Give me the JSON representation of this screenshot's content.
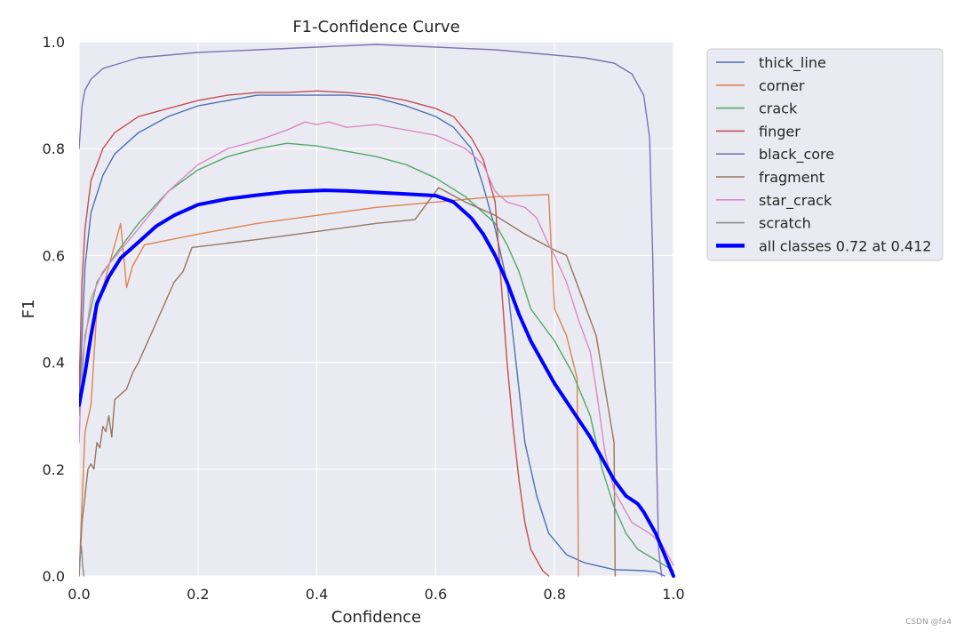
{
  "chart_data": {
    "type": "line",
    "title": "F1-Confidence Curve",
    "xlabel": "Confidence",
    "ylabel": "F1",
    "xlim": [
      0.0,
      1.0
    ],
    "ylim": [
      0.0,
      1.0
    ],
    "xticks": [
      "0.0",
      "0.2",
      "0.4",
      "0.6",
      "0.8",
      "1.0"
    ],
    "yticks": [
      "0.0",
      "0.2",
      "0.4",
      "0.6",
      "0.8",
      "1.0"
    ],
    "grid": true,
    "background": "#eaeaf2",
    "legend_position": "outside-right",
    "series": [
      {
        "name": "thick_line",
        "color": "#4c72b0",
        "width": 1.4,
        "points": [
          [
            0,
            0.32
          ],
          [
            0.01,
            0.58
          ],
          [
            0.02,
            0.68
          ],
          [
            0.04,
            0.75
          ],
          [
            0.06,
            0.79
          ],
          [
            0.1,
            0.83
          ],
          [
            0.15,
            0.86
          ],
          [
            0.2,
            0.88
          ],
          [
            0.25,
            0.89
          ],
          [
            0.3,
            0.9
          ],
          [
            0.35,
            0.9
          ],
          [
            0.4,
            0.9
          ],
          [
            0.45,
            0.9
          ],
          [
            0.5,
            0.895
          ],
          [
            0.55,
            0.88
          ],
          [
            0.6,
            0.86
          ],
          [
            0.63,
            0.84
          ],
          [
            0.66,
            0.8
          ],
          [
            0.68,
            0.73
          ],
          [
            0.7,
            0.65
          ],
          [
            0.72,
            0.55
          ],
          [
            0.73,
            0.45
          ],
          [
            0.74,
            0.35
          ],
          [
            0.75,
            0.25
          ],
          [
            0.77,
            0.15
          ],
          [
            0.79,
            0.08
          ],
          [
            0.82,
            0.04
          ],
          [
            0.85,
            0.025
          ],
          [
            0.9,
            0.012
          ],
          [
            0.95,
            0.01
          ],
          [
            0.97,
            0.008
          ],
          [
            0.985,
            0.0
          ]
        ]
      },
      {
        "name": "corner",
        "color": "#dd8452",
        "width": 1.4,
        "points": [
          [
            0,
            0.0
          ],
          [
            0.01,
            0.27
          ],
          [
            0.02,
            0.32
          ],
          [
            0.03,
            0.5
          ],
          [
            0.05,
            0.58
          ],
          [
            0.07,
            0.66
          ],
          [
            0.075,
            0.6
          ],
          [
            0.08,
            0.54
          ],
          [
            0.09,
            0.58
          ],
          [
            0.1,
            0.6
          ],
          [
            0.11,
            0.62
          ],
          [
            0.2,
            0.64
          ],
          [
            0.3,
            0.66
          ],
          [
            0.4,
            0.675
          ],
          [
            0.5,
            0.69
          ],
          [
            0.6,
            0.7
          ],
          [
            0.7,
            0.71
          ],
          [
            0.79,
            0.714
          ],
          [
            0.795,
            0.6
          ],
          [
            0.8,
            0.5
          ],
          [
            0.82,
            0.45
          ],
          [
            0.838,
            0.37
          ],
          [
            0.84,
            0.0
          ]
        ]
      },
      {
        "name": "crack",
        "color": "#55a868",
        "width": 1.4,
        "points": [
          [
            0,
            0.3
          ],
          [
            0.01,
            0.45
          ],
          [
            0.03,
            0.55
          ],
          [
            0.06,
            0.6
          ],
          [
            0.1,
            0.66
          ],
          [
            0.15,
            0.72
          ],
          [
            0.2,
            0.76
          ],
          [
            0.25,
            0.785
          ],
          [
            0.3,
            0.8
          ],
          [
            0.35,
            0.81
          ],
          [
            0.4,
            0.805
          ],
          [
            0.45,
            0.795
          ],
          [
            0.5,
            0.785
          ],
          [
            0.55,
            0.77
          ],
          [
            0.6,
            0.745
          ],
          [
            0.65,
            0.71
          ],
          [
            0.7,
            0.66
          ],
          [
            0.72,
            0.62
          ],
          [
            0.74,
            0.57
          ],
          [
            0.76,
            0.5
          ],
          [
            0.8,
            0.44
          ],
          [
            0.83,
            0.38
          ],
          [
            0.86,
            0.3
          ],
          [
            0.88,
            0.2
          ],
          [
            0.9,
            0.13
          ],
          [
            0.92,
            0.08
          ],
          [
            0.94,
            0.05
          ],
          [
            0.97,
            0.03
          ],
          [
            1.0,
            0.01
          ]
        ]
      },
      {
        "name": "finger",
        "color": "#c44e52",
        "width": 1.4,
        "points": [
          [
            0,
            0.35
          ],
          [
            0.005,
            0.55
          ],
          [
            0.01,
            0.65
          ],
          [
            0.02,
            0.74
          ],
          [
            0.04,
            0.8
          ],
          [
            0.06,
            0.83
          ],
          [
            0.1,
            0.86
          ],
          [
            0.15,
            0.875
          ],
          [
            0.2,
            0.89
          ],
          [
            0.25,
            0.9
          ],
          [
            0.3,
            0.905
          ],
          [
            0.35,
            0.905
          ],
          [
            0.4,
            0.908
          ],
          [
            0.45,
            0.905
          ],
          [
            0.5,
            0.9
          ],
          [
            0.55,
            0.89
          ],
          [
            0.6,
            0.875
          ],
          [
            0.63,
            0.86
          ],
          [
            0.66,
            0.82
          ],
          [
            0.68,
            0.78
          ],
          [
            0.7,
            0.7
          ],
          [
            0.71,
            0.55
          ],
          [
            0.72,
            0.4
          ],
          [
            0.73,
            0.28
          ],
          [
            0.74,
            0.18
          ],
          [
            0.75,
            0.1
          ],
          [
            0.76,
            0.05
          ],
          [
            0.78,
            0.01
          ],
          [
            0.79,
            0.0
          ]
        ]
      },
      {
        "name": "black_core",
        "color": "#8172b3",
        "width": 1.4,
        "points": [
          [
            0,
            0.8
          ],
          [
            0.005,
            0.88
          ],
          [
            0.01,
            0.91
          ],
          [
            0.02,
            0.93
          ],
          [
            0.04,
            0.95
          ],
          [
            0.07,
            0.96
          ],
          [
            0.1,
            0.97
          ],
          [
            0.2,
            0.98
          ],
          [
            0.3,
            0.985
          ],
          [
            0.4,
            0.99
          ],
          [
            0.5,
            0.995
          ],
          [
            0.6,
            0.99
          ],
          [
            0.7,
            0.985
          ],
          [
            0.8,
            0.975
          ],
          [
            0.85,
            0.97
          ],
          [
            0.9,
            0.96
          ],
          [
            0.93,
            0.94
          ],
          [
            0.95,
            0.9
          ],
          [
            0.96,
            0.82
          ],
          [
            0.965,
            0.6
          ],
          [
            0.97,
            0.3
          ],
          [
            0.975,
            0.05
          ],
          [
            0.98,
            0.0
          ]
        ]
      },
      {
        "name": "fragment",
        "color": "#937860",
        "width": 1.4,
        "points": [
          [
            0,
            0.0
          ],
          [
            0.005,
            0.1
          ],
          [
            0.01,
            0.15
          ],
          [
            0.015,
            0.2
          ],
          [
            0.02,
            0.21
          ],
          [
            0.025,
            0.2
          ],
          [
            0.03,
            0.25
          ],
          [
            0.035,
            0.24
          ],
          [
            0.04,
            0.28
          ],
          [
            0.045,
            0.27
          ],
          [
            0.05,
            0.3
          ],
          [
            0.055,
            0.26
          ],
          [
            0.06,
            0.33
          ],
          [
            0.07,
            0.34
          ],
          [
            0.08,
            0.35
          ],
          [
            0.09,
            0.38
          ],
          [
            0.1,
            0.4
          ],
          [
            0.12,
            0.45
          ],
          [
            0.14,
            0.5
          ],
          [
            0.16,
            0.55
          ],
          [
            0.175,
            0.57
          ],
          [
            0.19,
            0.615
          ],
          [
            0.3,
            0.63
          ],
          [
            0.4,
            0.645
          ],
          [
            0.5,
            0.66
          ],
          [
            0.565,
            0.667
          ],
          [
            0.605,
            0.727
          ],
          [
            0.65,
            0.7
          ],
          [
            0.7,
            0.675
          ],
          [
            0.75,
            0.64
          ],
          [
            0.8,
            0.61
          ],
          [
            0.82,
            0.6
          ],
          [
            0.87,
            0.45
          ],
          [
            0.9,
            0.25
          ],
          [
            0.902,
            0.0
          ]
        ]
      },
      {
        "name": "star_crack",
        "color": "#da8bc3",
        "width": 1.4,
        "points": [
          [
            0,
            0.25
          ],
          [
            0.005,
            0.4
          ],
          [
            0.02,
            0.52
          ],
          [
            0.04,
            0.57
          ],
          [
            0.07,
            0.61
          ],
          [
            0.1,
            0.65
          ],
          [
            0.15,
            0.72
          ],
          [
            0.2,
            0.77
          ],
          [
            0.25,
            0.8
          ],
          [
            0.3,
            0.815
          ],
          [
            0.35,
            0.835
          ],
          [
            0.38,
            0.85
          ],
          [
            0.4,
            0.845
          ],
          [
            0.42,
            0.85
          ],
          [
            0.45,
            0.84
          ],
          [
            0.5,
            0.845
          ],
          [
            0.55,
            0.835
          ],
          [
            0.6,
            0.825
          ],
          [
            0.65,
            0.8
          ],
          [
            0.68,
            0.77
          ],
          [
            0.7,
            0.72
          ],
          [
            0.72,
            0.7
          ],
          [
            0.75,
            0.69
          ],
          [
            0.77,
            0.67
          ],
          [
            0.79,
            0.62
          ],
          [
            0.8,
            0.6
          ],
          [
            0.82,
            0.55
          ],
          [
            0.84,
            0.48
          ],
          [
            0.86,
            0.42
          ],
          [
            0.87,
            0.35
          ],
          [
            0.88,
            0.27
          ],
          [
            0.885,
            0.23
          ],
          [
            0.9,
            0.16
          ],
          [
            0.93,
            0.1
          ],
          [
            0.96,
            0.08
          ],
          [
            0.98,
            0.06
          ],
          [
            1.0,
            0.02
          ]
        ]
      },
      {
        "name": "scratch",
        "color": "#8c8c8c",
        "width": 1.4,
        "points": [
          [
            0,
            0.01
          ],
          [
            0.002,
            0.04
          ],
          [
            0.004,
            0.055
          ],
          [
            0.006,
            0.02
          ],
          [
            0.008,
            0.0
          ]
        ]
      },
      {
        "name": "all classes 0.72 at 0.412",
        "color": "#0000ff",
        "width": 4,
        "points": [
          [
            0,
            0.32
          ],
          [
            0.01,
            0.38
          ],
          [
            0.02,
            0.45
          ],
          [
            0.03,
            0.51
          ],
          [
            0.05,
            0.56
          ],
          [
            0.07,
            0.595
          ],
          [
            0.1,
            0.625
          ],
          [
            0.13,
            0.655
          ],
          [
            0.16,
            0.675
          ],
          [
            0.2,
            0.695
          ],
          [
            0.25,
            0.706
          ],
          [
            0.3,
            0.713
          ],
          [
            0.35,
            0.719
          ],
          [
            0.412,
            0.722
          ],
          [
            0.45,
            0.721
          ],
          [
            0.5,
            0.718
          ],
          [
            0.55,
            0.715
          ],
          [
            0.6,
            0.712
          ],
          [
            0.63,
            0.7
          ],
          [
            0.66,
            0.67
          ],
          [
            0.68,
            0.64
          ],
          [
            0.7,
            0.6
          ],
          [
            0.72,
            0.55
          ],
          [
            0.74,
            0.49
          ],
          [
            0.76,
            0.44
          ],
          [
            0.78,
            0.4
          ],
          [
            0.8,
            0.36
          ],
          [
            0.83,
            0.31
          ],
          [
            0.86,
            0.26
          ],
          [
            0.88,
            0.22
          ],
          [
            0.9,
            0.18
          ],
          [
            0.92,
            0.15
          ],
          [
            0.94,
            0.135
          ],
          [
            0.95,
            0.12
          ],
          [
            0.97,
            0.08
          ],
          [
            0.985,
            0.04
          ],
          [
            1.0,
            0.0
          ]
        ]
      }
    ]
  },
  "watermark": "CSDN @fa4"
}
